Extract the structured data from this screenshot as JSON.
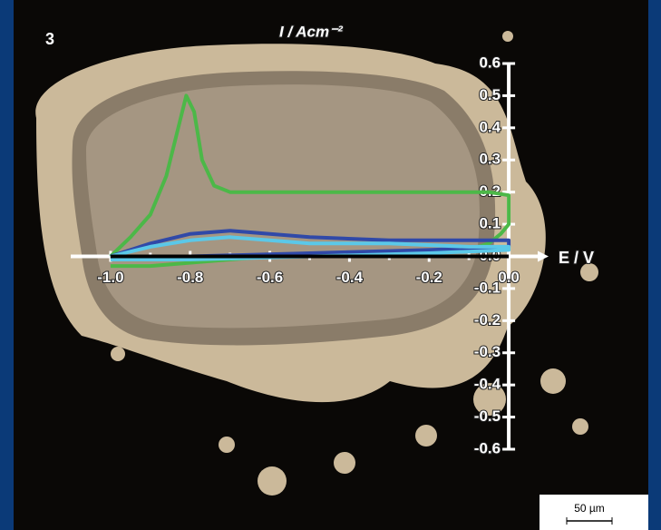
{
  "chart_data": {
    "type": "line",
    "panel_label": "3",
    "y_label": "I / Acm⁻²",
    "x_label": "E / V",
    "scale_bar_label": "50 µm",
    "xlim": [
      -1.1,
      0.1
    ],
    "ylim": [
      -0.6,
      0.6
    ],
    "xticks": [
      {
        "value": -1.0,
        "label": "-1.0"
      },
      -0.8,
      -0.6,
      -0.4,
      -0.2,
      {
        "value": 0.0,
        "label": "0.0"
      }
    ],
    "xminorticks": [
      -0.9,
      -0.7,
      -0.5,
      -0.3,
      -0.1
    ],
    "yticks": [
      -0.6,
      -0.5,
      -0.4,
      -0.3,
      -0.2,
      -0.1,
      {
        "value": 0.0,
        "label": "0.0"
      },
      0.1,
      0.2,
      0.3,
      0.4,
      0.5,
      0.6
    ],
    "series": [
      {
        "color": "#4cb848",
        "x": [
          -1.0,
          -0.95,
          -0.9,
          -0.86,
          -0.83,
          -0.81,
          -0.79,
          -0.77,
          -0.74,
          -0.7,
          -0.6,
          -0.4,
          -0.2,
          -0.05,
          0.0,
          0.0,
          -0.02,
          -0.05,
          -0.1,
          -0.3,
          -0.6,
          -0.9,
          -1.0
        ],
        "values": [
          0.0,
          0.06,
          0.13,
          0.25,
          0.4,
          0.5,
          0.45,
          0.3,
          0.22,
          0.2,
          0.2,
          0.2,
          0.2,
          0.2,
          0.19,
          0.1,
          0.07,
          0.04,
          0.02,
          0.01,
          0.0,
          -0.03,
          -0.03
        ]
      },
      {
        "color": "#3049a8",
        "x": [
          -1.0,
          -0.9,
          -0.8,
          -0.7,
          -0.6,
          -0.5,
          -0.3,
          -0.1,
          0.0,
          0.0,
          -0.2,
          -0.5,
          -0.8,
          -1.0
        ],
        "values": [
          0.0,
          0.04,
          0.07,
          0.08,
          0.07,
          0.06,
          0.05,
          0.05,
          0.05,
          0.03,
          0.02,
          0.01,
          0.0,
          0.0
        ]
      },
      {
        "color": "#5bc8e8",
        "x": [
          -1.0,
          -0.9,
          -0.8,
          -0.7,
          -0.6,
          -0.5,
          -0.3,
          -0.1,
          0.0,
          0.0,
          -0.2,
          -0.5,
          -0.8,
          -1.0
        ],
        "values": [
          0.0,
          0.03,
          0.05,
          0.06,
          0.05,
          0.04,
          0.04,
          0.03,
          0.03,
          0.02,
          0.01,
          0.0,
          -0.01,
          -0.01
        ]
      },
      {
        "color": "#000000",
        "x": [
          -1.0,
          0.0
        ],
        "values": [
          0.0,
          0.0
        ]
      }
    ]
  }
}
